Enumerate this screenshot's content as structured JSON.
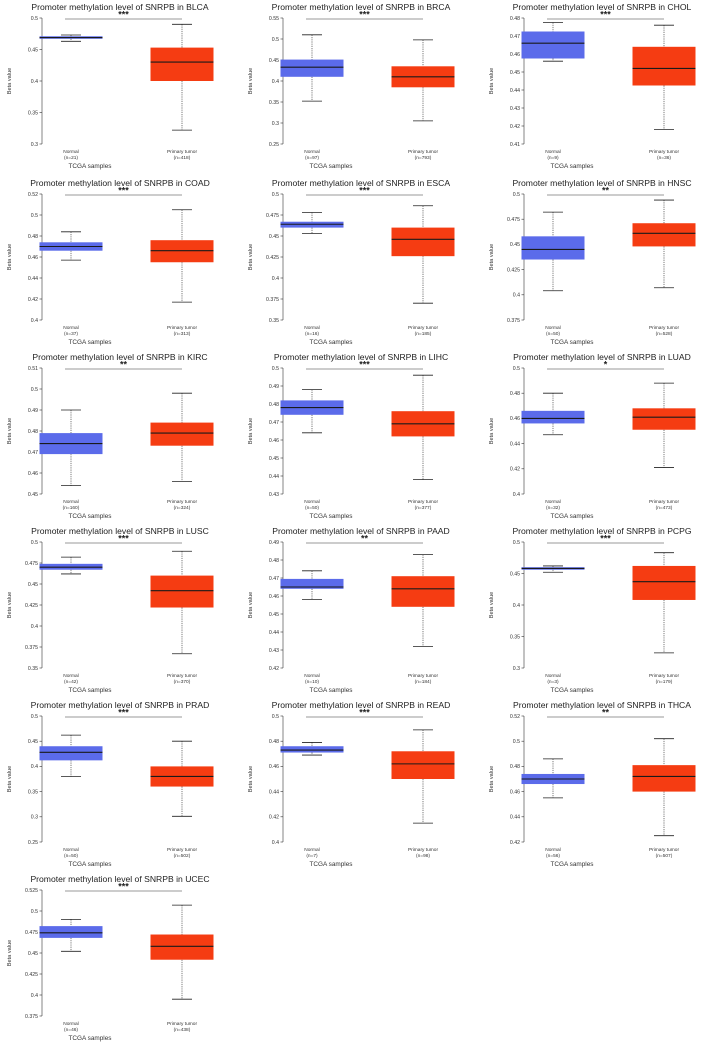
{
  "common": {
    "ylabel": "Beta value",
    "xlabel": "TCGA samples",
    "group_labels": [
      "Normal",
      "Primary tumor"
    ],
    "colors": {
      "normal": "#5b6bea",
      "tumor": "#f53c12",
      "median": "#1a1a1a",
      "whisker": "#222222"
    }
  },
  "chart_data": [
    {
      "type": "box",
      "title": "Promoter methylation level of SNRPB in BLCA",
      "ylabel": "Beta value",
      "xlabel": "TCGA samples",
      "yticks": [
        "0.3",
        "0.35",
        "0.4",
        "0.45",
        "0.5"
      ],
      "ylim": [
        0.3,
        0.5
      ],
      "significance": "***",
      "groups": [
        {
          "name": "Normal",
          "n": "(n=21)",
          "min": 0.463,
          "q1": 0.467,
          "median": 0.469,
          "q3": 0.471,
          "max": 0.473
        },
        {
          "name": "Primary tumor",
          "n": "(n=418)",
          "min": 0.322,
          "q1": 0.4,
          "median": 0.43,
          "q3": 0.453,
          "max": 0.49
        }
      ]
    },
    {
      "type": "box",
      "title": "Promoter methylation level of SNRPB in BRCA",
      "ylabel": "Beta value",
      "xlabel": "TCGA samples",
      "yticks": [
        "0.25",
        "0.3",
        "0.35",
        "0.4",
        "0.45",
        "0.5",
        "0.55"
      ],
      "ylim": [
        0.25,
        0.55
      ],
      "significance": "***",
      "groups": [
        {
          "name": "Normal",
          "n": "(n=97)",
          "min": 0.352,
          "q1": 0.41,
          "median": 0.433,
          "q3": 0.451,
          "max": 0.51
        },
        {
          "name": "Primary tumor",
          "n": "(n=793)",
          "min": 0.305,
          "q1": 0.385,
          "median": 0.41,
          "q3": 0.435,
          "max": 0.498
        }
      ]
    },
    {
      "type": "box",
      "title": "Promoter methylation level of SNRPB in CHOL",
      "ylabel": "Beta value",
      "xlabel": "TCGA samples",
      "yticks": [
        "0.41",
        "0.42",
        "0.43",
        "0.44",
        "0.45",
        "0.46",
        "0.47",
        "0.48"
      ],
      "ylim": [
        0.41,
        0.48
      ],
      "significance": "***",
      "groups": [
        {
          "name": "Normal",
          "n": "(n=9)",
          "min": 0.456,
          "q1": 0.4575,
          "median": 0.466,
          "q3": 0.4725,
          "max": 0.4775
        },
        {
          "name": "Primary tumor",
          "n": "(n=36)",
          "min": 0.418,
          "q1": 0.4425,
          "median": 0.452,
          "q3": 0.464,
          "max": 0.476
        }
      ]
    },
    {
      "type": "box",
      "title": "Promoter methylation level of SNRPB in COAD",
      "ylabel": "Beta value",
      "xlabel": "TCGA samples",
      "yticks": [
        "0.4",
        "0.42",
        "0.44",
        "0.46",
        "0.48",
        "0.5",
        "0.52"
      ],
      "ylim": [
        0.4,
        0.52
      ],
      "significance": "***",
      "groups": [
        {
          "name": "Normal",
          "n": "(n=37)",
          "min": 0.457,
          "q1": 0.466,
          "median": 0.47,
          "q3": 0.474,
          "max": 0.484
        },
        {
          "name": "Primary tumor",
          "n": "(n=313)",
          "min": 0.417,
          "q1": 0.455,
          "median": 0.466,
          "q3": 0.476,
          "max": 0.505
        }
      ]
    },
    {
      "type": "box",
      "title": "Promoter methylation level of SNRPB in ESCA",
      "ylabel": "Beta value",
      "xlabel": "TCGA samples",
      "yticks": [
        "0.35",
        "0.375",
        "0.4",
        "0.425",
        "0.45",
        "0.475",
        "0.5"
      ],
      "ylim": [
        0.35,
        0.5
      ],
      "significance": "***",
      "groups": [
        {
          "name": "Normal",
          "n": "(n=16)",
          "min": 0.453,
          "q1": 0.46,
          "median": 0.464,
          "q3": 0.467,
          "max": 0.478
        },
        {
          "name": "Primary tumor",
          "n": "(n=185)",
          "min": 0.37,
          "q1": 0.426,
          "median": 0.446,
          "q3": 0.46,
          "max": 0.486
        }
      ]
    },
    {
      "type": "box",
      "title": "Promoter methylation level of SNRPB in HNSC",
      "ylabel": "Beta value",
      "xlabel": "TCGA samples",
      "yticks": [
        "0.375",
        "0.4",
        "0.425",
        "0.45",
        "0.475",
        "0.5"
      ],
      "ylim": [
        0.375,
        0.5
      ],
      "significance": "**",
      "groups": [
        {
          "name": "Normal",
          "n": "(n=50)",
          "min": 0.404,
          "q1": 0.435,
          "median": 0.445,
          "q3": 0.458,
          "max": 0.482
        },
        {
          "name": "Primary tumor",
          "n": "(n=528)",
          "min": 0.407,
          "q1": 0.448,
          "median": 0.461,
          "q3": 0.471,
          "max": 0.494
        }
      ]
    },
    {
      "type": "box",
      "title": "Promoter methylation level of SNRPB in KIRC",
      "ylabel": "Beta value",
      "xlabel": "TCGA samples",
      "yticks": [
        "0.45",
        "0.46",
        "0.47",
        "0.48",
        "0.49",
        "0.5",
        "0.51"
      ],
      "ylim": [
        0.45,
        0.51
      ],
      "significance": "**",
      "groups": [
        {
          "name": "Normal",
          "n": "(n=160)",
          "min": 0.454,
          "q1": 0.469,
          "median": 0.474,
          "q3": 0.479,
          "max": 0.49
        },
        {
          "name": "Primary tumor",
          "n": "(n=324)",
          "min": 0.456,
          "q1": 0.473,
          "median": 0.479,
          "q3": 0.484,
          "max": 0.498
        }
      ]
    },
    {
      "type": "box",
      "title": "Promoter methylation level of SNRPB in LIHC",
      "ylabel": "Beta value",
      "xlabel": "TCGA samples",
      "yticks": [
        "0.43",
        "0.44",
        "0.45",
        "0.46",
        "0.47",
        "0.48",
        "0.49",
        "0.5"
      ],
      "ylim": [
        0.43,
        0.5
      ],
      "significance": "***",
      "groups": [
        {
          "name": "Normal",
          "n": "(n=50)",
          "min": 0.464,
          "q1": 0.474,
          "median": 0.478,
          "q3": 0.482,
          "max": 0.488
        },
        {
          "name": "Primary tumor",
          "n": "(n=377)",
          "min": 0.438,
          "q1": 0.462,
          "median": 0.469,
          "q3": 0.476,
          "max": 0.496
        }
      ]
    },
    {
      "type": "box",
      "title": "Promoter methylation level of SNRPB in LUAD",
      "ylabel": "Beta value",
      "xlabel": "TCGA samples",
      "yticks": [
        "0.4",
        "0.42",
        "0.44",
        "0.46",
        "0.48",
        "0.5"
      ],
      "ylim": [
        0.4,
        0.5
      ],
      "significance": "*",
      "groups": [
        {
          "name": "Normal",
          "n": "(n=32)",
          "min": 0.447,
          "q1": 0.456,
          "median": 0.46,
          "q3": 0.466,
          "max": 0.48
        },
        {
          "name": "Primary tumor",
          "n": "(n=473)",
          "min": 0.421,
          "q1": 0.451,
          "median": 0.461,
          "q3": 0.468,
          "max": 0.488
        }
      ]
    },
    {
      "type": "box",
      "title": "Promoter methylation level of SNRPB in LUSC",
      "ylabel": "Beta value",
      "xlabel": "TCGA samples",
      "yticks": [
        "0.35",
        "0.375",
        "0.4",
        "0.425",
        "0.45",
        "0.475",
        "0.5"
      ],
      "ylim": [
        0.35,
        0.5
      ],
      "significance": "***",
      "groups": [
        {
          "name": "Normal",
          "n": "(n=42)",
          "min": 0.462,
          "q1": 0.467,
          "median": 0.47,
          "q3": 0.474,
          "max": 0.482
        },
        {
          "name": "Primary tumor",
          "n": "(n=370)",
          "min": 0.367,
          "q1": 0.422,
          "median": 0.442,
          "q3": 0.46,
          "max": 0.489
        }
      ]
    },
    {
      "type": "box",
      "title": "Promoter methylation level of SNRPB in PAAD",
      "ylabel": "Beta value",
      "xlabel": "TCGA samples",
      "yticks": [
        "0.42",
        "0.43",
        "0.44",
        "0.45",
        "0.46",
        "0.47",
        "0.48",
        "0.49"
      ],
      "ylim": [
        0.42,
        0.49
      ],
      "significance": "**",
      "groups": [
        {
          "name": "Normal",
          "n": "(n=10)",
          "min": 0.458,
          "q1": 0.464,
          "median": 0.465,
          "q3": 0.4695,
          "max": 0.474
        },
        {
          "name": "Primary tumor",
          "n": "(n=184)",
          "min": 0.432,
          "q1": 0.454,
          "median": 0.464,
          "q3": 0.471,
          "max": 0.483
        }
      ]
    },
    {
      "type": "box",
      "title": "Promoter methylation level of SNRPB in PCPG",
      "ylabel": "Beta value",
      "xlabel": "TCGA samples",
      "yticks": [
        "0.3",
        "0.35",
        "0.4",
        "0.45",
        "0.5"
      ],
      "ylim": [
        0.3,
        0.5
      ],
      "significance": "***",
      "groups": [
        {
          "name": "Normal",
          "n": "(n=3)",
          "min": 0.452,
          "q1": 0.456,
          "median": 0.458,
          "q3": 0.46,
          "max": 0.462
        },
        {
          "name": "Primary tumor",
          "n": "(n=179)",
          "min": 0.324,
          "q1": 0.408,
          "median": 0.437,
          "q3": 0.462,
          "max": 0.483
        }
      ]
    },
    {
      "type": "box",
      "title": "Promoter methylation level of SNRPB in PRAD",
      "ylabel": "Beta value",
      "xlabel": "TCGA samples",
      "yticks": [
        "0.25",
        "0.3",
        "0.35",
        "0.4",
        "0.45",
        "0.5"
      ],
      "ylim": [
        0.25,
        0.5
      ],
      "significance": "***",
      "groups": [
        {
          "name": "Normal",
          "n": "(n=50)",
          "min": 0.38,
          "q1": 0.412,
          "median": 0.428,
          "q3": 0.44,
          "max": 0.462
        },
        {
          "name": "Primary tumor",
          "n": "(n=502)",
          "min": 0.301,
          "q1": 0.36,
          "median": 0.38,
          "q3": 0.4,
          "max": 0.45
        }
      ]
    },
    {
      "type": "box",
      "title": "Promoter methylation level of SNRPB in READ",
      "ylabel": "Beta value",
      "xlabel": "TCGA samples",
      "yticks": [
        "0.4",
        "0.42",
        "0.44",
        "0.46",
        "0.48",
        "0.5"
      ],
      "ylim": [
        0.4,
        0.5
      ],
      "significance": "***",
      "groups": [
        {
          "name": "Normal",
          "n": "(n=7)",
          "min": 0.469,
          "q1": 0.471,
          "median": 0.473,
          "q3": 0.476,
          "max": 0.479
        },
        {
          "name": "Primary tumor",
          "n": "(n=98)",
          "min": 0.415,
          "q1": 0.45,
          "median": 0.462,
          "q3": 0.472,
          "max": 0.489
        }
      ]
    },
    {
      "type": "box",
      "title": "Promoter methylation level of SNRPB in THCA",
      "ylabel": "Beta value",
      "xlabel": "TCGA samples",
      "yticks": [
        "0.42",
        "0.44",
        "0.46",
        "0.48",
        "0.5",
        "0.52"
      ],
      "ylim": [
        0.42,
        0.52
      ],
      "significance": "**",
      "groups": [
        {
          "name": "Normal",
          "n": "(n=56)",
          "min": 0.455,
          "q1": 0.466,
          "median": 0.47,
          "q3": 0.474,
          "max": 0.486
        },
        {
          "name": "Primary tumor",
          "n": "(n=507)",
          "min": 0.425,
          "q1": 0.46,
          "median": 0.472,
          "q3": 0.481,
          "max": 0.502
        }
      ]
    },
    {
      "type": "box",
      "title": "Promoter methylation level  of SNRPB in UCEC",
      "ylabel": "Beta value",
      "xlabel": "TCGA samples",
      "yticks": [
        "0.375",
        "0.4",
        "0.425",
        "0.45",
        "0.475",
        "0.5",
        "0.525"
      ],
      "ylim": [
        0.375,
        0.525
      ],
      "significance": "***",
      "groups": [
        {
          "name": "Normal",
          "n": "(n=46)",
          "min": 0.452,
          "q1": 0.468,
          "median": 0.474,
          "q3": 0.482,
          "max": 0.49
        },
        {
          "name": "Primary tumor",
          "n": "(n=438)",
          "min": 0.395,
          "q1": 0.442,
          "median": 0.458,
          "q3": 0.472,
          "max": 0.507
        }
      ]
    }
  ]
}
